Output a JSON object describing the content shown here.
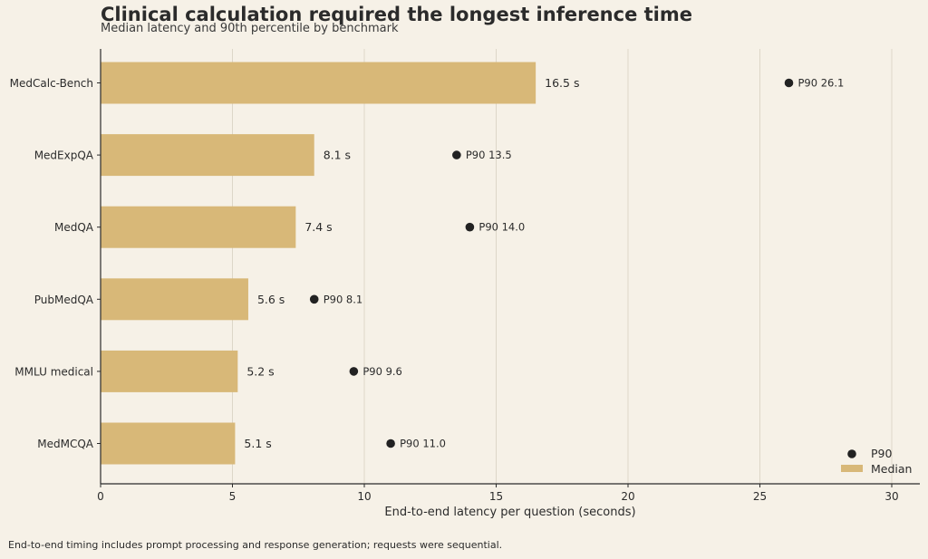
{
  "chart_data": {
    "type": "bar",
    "orientation": "horizontal",
    "title": "Clinical calculation required the longest inference time",
    "subtitle": "Median latency and 90th percentile by benchmark",
    "xlabel": "End-to-end latency per question (seconds)",
    "ylabel": "",
    "xlim": [
      0,
      31
    ],
    "xticks": [
      0,
      5,
      10,
      15,
      20,
      25,
      30
    ],
    "grid": "vertical",
    "legend_position": "bottom-right",
    "categories": [
      "MedCalc-Bench",
      "MedExpQA",
      "MedQA",
      "PubMedQA",
      "MMLU medical",
      "MedMCQA"
    ],
    "series": [
      {
        "name": "Median",
        "kind": "bar",
        "color": "#d8b878",
        "values": [
          16.5,
          8.1,
          7.4,
          5.6,
          5.2,
          5.1
        ],
        "labels": [
          "16.5 s",
          "8.1 s",
          "7.4 s",
          "5.6 s",
          "5.2 s",
          "5.1 s"
        ]
      },
      {
        "name": "P90",
        "kind": "point",
        "color": "#222222",
        "values": [
          26.1,
          13.5,
          14.0,
          8.1,
          9.6,
          11.0
        ],
        "labels": [
          "P90 26.1",
          "P90 13.5",
          "P90 14.0",
          "P90 8.1",
          "P90 9.6",
          "P90 11.0"
        ]
      }
    ],
    "footnote": "End-to-end timing includes prompt processing and response generation; requests were sequential."
  }
}
